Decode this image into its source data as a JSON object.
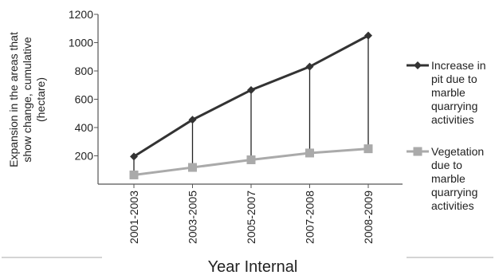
{
  "chart_data": {
    "type": "line",
    "title": "",
    "xlabel": "Year Internal",
    "ylabel_lines": [
      "Expansion in the areas that",
      "show change, cumulative",
      "(hectare)"
    ],
    "categories": [
      "2001-2003",
      "2003-2005",
      "2005-2007",
      "2007-2008",
      "2008-2009"
    ],
    "ylim": [
      0,
      1200
    ],
    "yticks": [
      200,
      400,
      600,
      800,
      1000,
      1200
    ],
    "grid": false,
    "legend_position": "right",
    "series": [
      {
        "name": "Increase in pit due to marble quarrying activities",
        "legend_lines": [
          "Increase in",
          "pit due to",
          "marble",
          "quarrying",
          "activities"
        ],
        "values": [
          195,
          455,
          665,
          830,
          1050
        ],
        "color": "#333333",
        "marker": "diamond"
      },
      {
        "name": "Vegetation due to marble quarrying activities",
        "legend_lines": [
          "Vegetation",
          "due to",
          "marble",
          "quarrying",
          "activities"
        ],
        "values": [
          65,
          118,
          172,
          220,
          250
        ],
        "color": "#aaaaaa",
        "marker": "square"
      }
    ],
    "drop_lines": true
  }
}
